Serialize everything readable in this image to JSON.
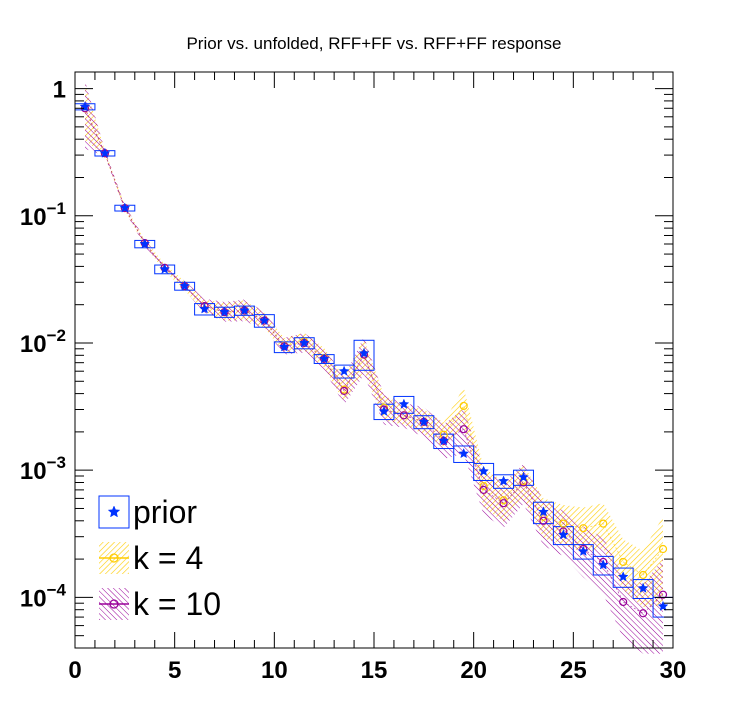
{
  "chart_data": {
    "type": "scatter",
    "title": "Prior vs. unfolded, RFF+FF vs. RFF+FF response",
    "xlabel": "",
    "ylabel": "",
    "xlim": [
      0,
      30
    ],
    "ylim": [
      4e-05,
      1.35
    ],
    "yscale": "log",
    "grid": false,
    "legend_position": "bottom-left",
    "x_ticks": [
      {
        "value": 0,
        "label": "0"
      },
      {
        "value": 5,
        "label": "5"
      },
      {
        "value": 10,
        "label": "10"
      },
      {
        "value": 15,
        "label": "15"
      },
      {
        "value": 20,
        "label": "20"
      },
      {
        "value": 25,
        "label": "25"
      },
      {
        "value": 30,
        "label": "30"
      }
    ],
    "y_ticks": [
      {
        "value": 1,
        "base": "1",
        "exp": ""
      },
      {
        "value": 0.1,
        "base": "10",
        "exp": "−1"
      },
      {
        "value": 0.01,
        "base": "10",
        "exp": "−2"
      },
      {
        "value": 0.001,
        "base": "10",
        "exp": "−3"
      },
      {
        "value": 0.0001,
        "base": "10",
        "exp": "−4"
      }
    ],
    "x": [
      0.5,
      1.5,
      2.5,
      3.5,
      4.5,
      5.5,
      6.5,
      7.5,
      8.5,
      9.5,
      10.5,
      11.5,
      12.5,
      13.5,
      14.5,
      15.5,
      16.5,
      17.5,
      18.5,
      19.5,
      20.5,
      21.5,
      22.5,
      23.5,
      24.5,
      25.5,
      26.5,
      27.5,
      28.5,
      29.5
    ],
    "series": [
      {
        "name": "prior",
        "color": "#0033ff",
        "marker": "star-with-box",
        "values": [
          0.72,
          0.31,
          0.115,
          0.06,
          0.038,
          0.028,
          0.0185,
          0.0175,
          0.018,
          0.015,
          0.0093,
          0.01,
          0.0075,
          0.006,
          0.0083,
          0.0029,
          0.0033,
          0.0024,
          0.0017,
          0.00135,
          0.00098,
          0.00082,
          0.00088,
          0.00047,
          0.00031,
          0.00023,
          0.00018,
          0.000145,
          0.000118,
          8.5e-05
        ],
        "box_half_height": [
          0.04,
          0.015,
          0.006,
          0.004,
          0.003,
          0.002,
          0.0019,
          0.0016,
          0.0015,
          0.0017,
          0.0009,
          0.001,
          0.0006,
          0.0007,
          0.0022,
          0.0004,
          0.0005,
          0.00028,
          0.00022,
          0.0002,
          0.00015,
          0.0001,
          0.00012,
          9e-05,
          5e-05,
          3e-05,
          3e-05,
          2.5e-05,
          2e-05,
          1.5e-05
        ]
      },
      {
        "name": "k = 4",
        "color": "#ffcc00",
        "marker": "open-circle",
        "values": [
          0.7,
          0.31,
          0.115,
          0.061,
          0.039,
          0.028,
          0.0195,
          0.0175,
          0.018,
          0.015,
          0.0095,
          0.0102,
          0.0076,
          0.0043,
          0.0081,
          0.0031,
          0.0027,
          0.0024,
          0.0019,
          0.0032,
          0.00075,
          0.00058,
          0.00082,
          0.00043,
          0.00038,
          0.00035,
          0.00038,
          0.00019,
          0.00015,
          0.00024
        ],
        "band_rel": [
          0.55,
          0.05,
          0.05,
          0.06,
          0.07,
          0.09,
          0.12,
          0.18,
          0.2,
          0.15,
          0.15,
          0.18,
          0.2,
          0.25,
          0.32,
          0.25,
          0.2,
          0.25,
          0.25,
          0.4,
          0.4,
          0.4,
          0.35,
          0.4,
          0.4,
          0.45,
          0.45,
          0.5,
          0.55,
          0.8
        ]
      },
      {
        "name": "k = 10",
        "color": "#990099",
        "marker": "open-circle",
        "values": [
          0.7,
          0.31,
          0.115,
          0.061,
          0.039,
          0.028,
          0.0195,
          0.0175,
          0.018,
          0.015,
          0.0094,
          0.01,
          0.0075,
          0.0042,
          0.0081,
          0.003,
          0.0027,
          0.0024,
          0.0017,
          0.0021,
          0.0007,
          0.00055,
          0.0008,
          0.0004,
          0.00033,
          0.00024,
          0.00019,
          9.2e-05,
          7.5e-05,
          0.000105
        ],
        "band_rel": [
          0.65,
          0.06,
          0.06,
          0.07,
          0.08,
          0.1,
          0.14,
          0.2,
          0.22,
          0.17,
          0.17,
          0.2,
          0.22,
          0.28,
          0.38,
          0.3,
          0.25,
          0.3,
          0.35,
          0.45,
          0.45,
          0.45,
          0.4,
          0.45,
          0.45,
          0.5,
          0.55,
          0.6,
          0.7,
          0.9
        ]
      }
    ]
  }
}
